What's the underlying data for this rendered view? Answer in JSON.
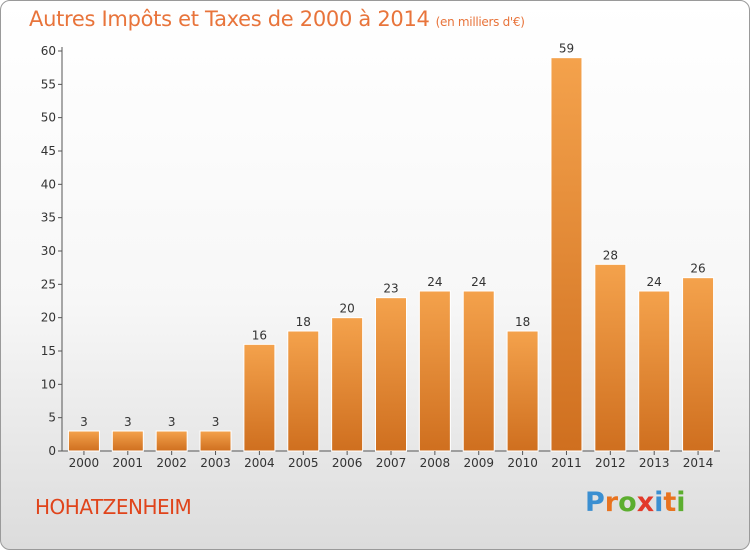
{
  "header": {
    "title": "Autres Impôts et Taxes de 2000 à 2014",
    "unit": "(en milliers d'€)"
  },
  "footer": {
    "commune": "HOHATZENHEIM",
    "logo": [
      "P",
      "r",
      "o",
      "x",
      "i",
      "t",
      "i"
    ]
  },
  "colors": {
    "title": "#e8743b",
    "commune": "#e0441b",
    "bar_light": "#f4a24c",
    "bar_dark": "#cf6f1f",
    "logo": [
      "#3b8fd1",
      "#e8731f",
      "#5cae2f",
      "#e23a2a",
      "#3b8fd1",
      "#e8731f",
      "#5cae2f"
    ]
  },
  "chart_data": {
    "type": "bar",
    "categories": [
      "2000",
      "2001",
      "2002",
      "2003",
      "2004",
      "2005",
      "2006",
      "2007",
      "2008",
      "2009",
      "2010",
      "2011",
      "2012",
      "2013",
      "2014"
    ],
    "values": [
      3,
      3,
      3,
      3,
      16,
      18,
      20,
      23,
      24,
      24,
      18,
      59,
      28,
      24,
      26
    ],
    "ylim": [
      0,
      60
    ],
    "yticks": [
      0,
      5,
      10,
      15,
      20,
      25,
      30,
      35,
      40,
      45,
      50,
      55,
      60
    ],
    "grid": false,
    "title": "Autres Impôts et Taxes de 2000 à 2014",
    "xlabel": "",
    "ylabel": ""
  }
}
